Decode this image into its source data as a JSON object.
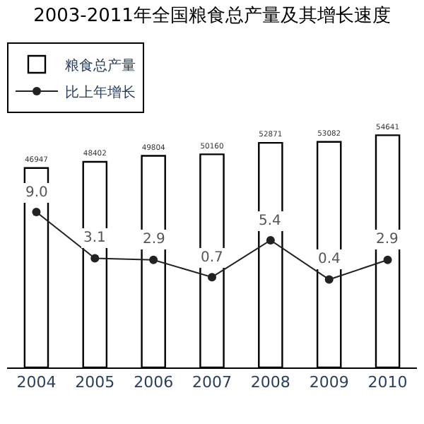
{
  "chart_data": {
    "type": "bar",
    "title": "2003-2011年全国粮食总产量及其增长速度",
    "categories": [
      "2004",
      "2005",
      "2006",
      "2007",
      "2008",
      "2009",
      "2010"
    ],
    "series": [
      {
        "name": "粮食总产量",
        "color": "#ffffff",
        "values": [
          46947,
          48402,
          49804,
          50160,
          52871,
          53082,
          54641
        ]
      },
      {
        "name": "比上年增长",
        "type": "line",
        "axis": "y2",
        "color": "#222222",
        "marker": "circle",
        "values": [
          9.0,
          3.1,
          2.9,
          0.7,
          5.4,
          0.4,
          2.9
        ],
        "value_labels": [
          "9.0",
          "3.1",
          "2.9",
          "0.7",
          "5.4",
          "0.4",
          "2.9"
        ]
      }
    ],
    "data_labels": true,
    "legend": "top left"
  }
}
